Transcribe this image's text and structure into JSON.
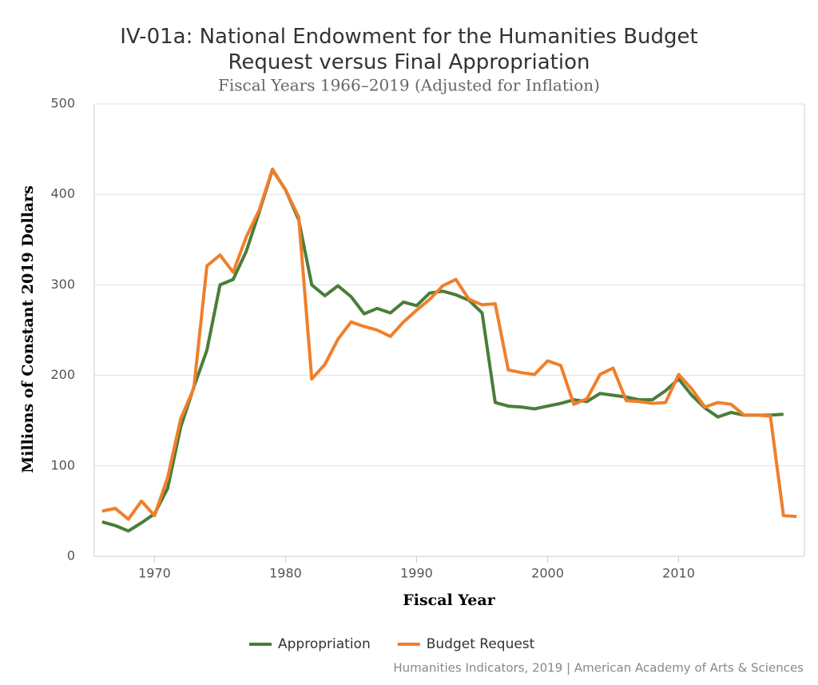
{
  "chart_data": {
    "type": "line",
    "title": "IV-01a: National Endowment for the Humanities Budget Request versus Final Appropriation",
    "subtitle": "Fiscal Years 1966–2019 (Adjusted for Inflation)",
    "x_label": "Fiscal Year",
    "y_label": "Millions of Constant 2019 Dollars",
    "credits": "Humanities Indicators, 2019 | American Academy of Arts & Sciences",
    "x": [
      1966,
      1967,
      1968,
      1969,
      1970,
      1971,
      1972,
      1973,
      1974,
      1975,
      1976,
      1977,
      1978,
      1979,
      1980,
      1981,
      1982,
      1983,
      1984,
      1985,
      1986,
      1987,
      1988,
      1989,
      1990,
      1991,
      1992,
      1993,
      1994,
      1995,
      1996,
      1997,
      1998,
      1999,
      2000,
      2001,
      2002,
      2003,
      2004,
      2005,
      2006,
      2007,
      2008,
      2009,
      2010,
      2011,
      2012,
      2013,
      2014,
      2015,
      2016,
      2017,
      2018,
      2019
    ],
    "series": [
      {
        "name": "Appropriation",
        "color": "#4a7d3a",
        "values": [
          38,
          34,
          28,
          37,
          47,
          75,
          143,
          187,
          228,
          300,
          306,
          337,
          381,
          427,
          405,
          372,
          300,
          288,
          299,
          287,
          268,
          274,
          269,
          281,
          277,
          291,
          293,
          289,
          283,
          269,
          170,
          166,
          165,
          163,
          166,
          169,
          173,
          171,
          180,
          178,
          176,
          173,
          173,
          183,
          196,
          178,
          164,
          154,
          159,
          156,
          156,
          156,
          157,
          null
        ]
      },
      {
        "name": "Budget Request",
        "color": "#f07f2a",
        "values": [
          50,
          53,
          41,
          61,
          45,
          87,
          152,
          186,
          321,
          333,
          314,
          353,
          383,
          428,
          405,
          375,
          196,
          212,
          240,
          259,
          254,
          250,
          243,
          259,
          272,
          284,
          299,
          306,
          284,
          278,
          279,
          206,
          203,
          201,
          216,
          211,
          168,
          174,
          201,
          208,
          172,
          171,
          169,
          170,
          201,
          185,
          165,
          170,
          168,
          156,
          156,
          155,
          45,
          44
        ]
      }
    ],
    "xlim": [
      1965.4,
      2019.6
    ],
    "xticks": [
      1970,
      1980,
      1990,
      2000,
      2010
    ],
    "ylim": [
      0,
      500
    ],
    "yticks": [
      0,
      100,
      200,
      300,
      400,
      500
    ],
    "grid": true,
    "legend": "bottom"
  }
}
